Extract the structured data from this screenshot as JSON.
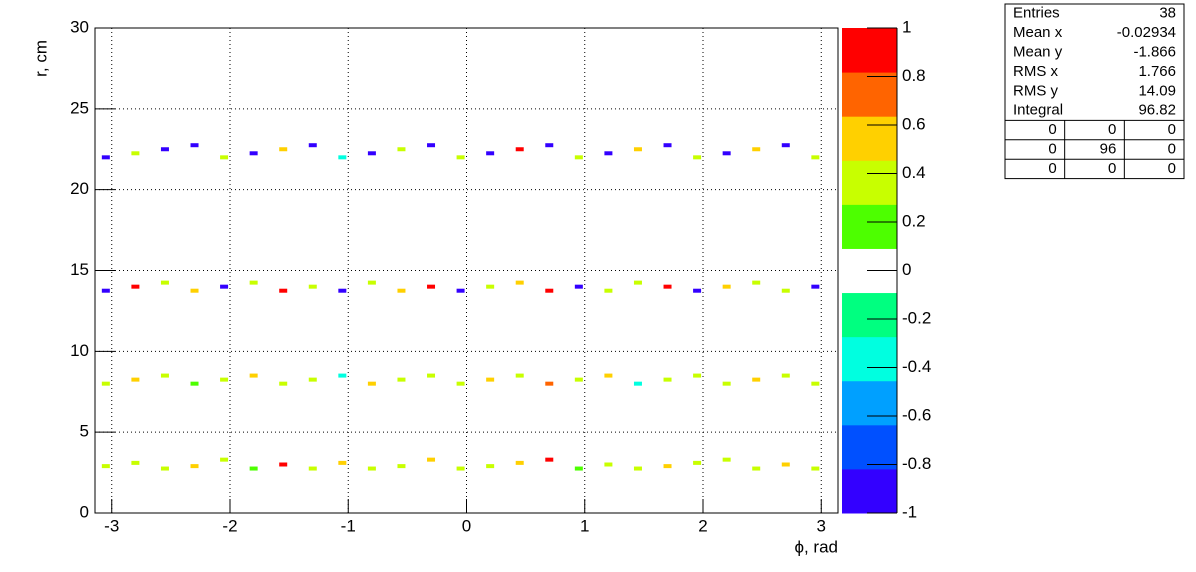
{
  "chart_data": {
    "type": "heatmap",
    "xlabel": "ϕ, rad",
    "ylabel": "r, cm",
    "xlim": [
      -3.1416,
      3.1416
    ],
    "xticks": [
      -3,
      -2,
      -1,
      0,
      1,
      2,
      3
    ],
    "ylim": [
      0,
      30
    ],
    "yticks": [
      0,
      5,
      10,
      15,
      20,
      25,
      30
    ],
    "zlim": [
      -1,
      1
    ],
    "zticks": [
      1,
      0.8,
      0.6,
      0.4,
      0.2,
      0,
      -0.2,
      -0.4,
      -0.6,
      -0.8,
      -1
    ],
    "grid": true,
    "palette": [
      "#3300ff",
      "#0050ff",
      "#00a0ff",
      "#00ffe0",
      "#00ff80",
      "#ffffff",
      "#4dff00",
      "#c8ff00",
      "#ffd000",
      "#ff6400",
      "#ff0000"
    ],
    "x": [
      -3.05,
      -2.8,
      -2.55,
      -2.3,
      -2.05,
      -1.8,
      -1.55,
      -1.3,
      -1.05,
      -0.8,
      -0.55,
      -0.3,
      -0.05,
      0.2,
      0.45,
      0.7,
      0.95,
      1.2,
      1.45,
      1.7,
      1.95,
      2.2,
      2.45,
      2.7,
      2.95,
      -3.05,
      -2.8,
      -2.55,
      -2.3,
      -2.05,
      -1.8,
      -1.55,
      -1.3,
      -1.05,
      -0.8,
      -0.55,
      -0.3,
      -0.05,
      0.2,
      0.45,
      0.7,
      0.95,
      1.2,
      1.45,
      1.7,
      1.95,
      2.2,
      2.45,
      2.7,
      2.95,
      -3.05,
      -2.8,
      -2.55,
      -2.3,
      -2.05,
      -1.8,
      -1.55,
      -1.3,
      -1.05,
      -0.8,
      -0.55,
      -0.3,
      -0.05,
      0.2,
      0.45,
      0.7,
      0.95,
      1.2,
      1.45,
      1.7,
      1.95,
      2.2,
      2.45,
      2.7,
      2.95,
      -3.05,
      -2.8,
      -2.55,
      -2.3,
      -2.05,
      -1.8,
      -1.55,
      -1.3,
      -1.05,
      -0.8,
      -0.55,
      -0.3,
      -0.05,
      0.2,
      0.45,
      0.7,
      0.95,
      1.2,
      1.45,
      1.7,
      1.95,
      2.2,
      2.45,
      2.7,
      2.95
    ],
    "y": [
      2.9,
      3.1,
      2.75,
      2.9,
      3.3,
      2.75,
      3.0,
      2.75,
      3.1,
      2.75,
      2.9,
      3.3,
      2.75,
      2.9,
      3.1,
      3.3,
      2.75,
      3.0,
      2.75,
      2.9,
      3.1,
      3.3,
      2.75,
      3.0,
      2.75,
      8.0,
      8.25,
      8.5,
      8.0,
      8.25,
      8.5,
      8.0,
      8.25,
      8.5,
      8.0,
      8.25,
      8.5,
      8.0,
      8.25,
      8.5,
      8.0,
      8.25,
      8.5,
      8.0,
      8.25,
      8.5,
      8.0,
      8.25,
      8.5,
      8.0,
      13.75,
      14.0,
      14.25,
      13.75,
      14.0,
      14.25,
      13.75,
      14.0,
      13.75,
      14.25,
      13.75,
      14.0,
      13.75,
      14.0,
      14.25,
      13.75,
      14.0,
      13.75,
      14.25,
      14.0,
      13.75,
      14.0,
      14.25,
      13.75,
      14.0,
      22.0,
      22.25,
      22.5,
      22.75,
      22.0,
      22.25,
      22.5,
      22.75,
      22.0,
      22.25,
      22.5,
      22.75,
      22.0,
      22.25,
      22.5,
      22.75,
      22.0,
      22.25,
      22.5,
      22.75,
      22.0,
      22.25,
      22.5,
      22.75,
      22.0
    ],
    "values": [
      0.45,
      0.35,
      0.3,
      0.55,
      0.4,
      0.25,
      0.9,
      0.35,
      0.5,
      0.3,
      0.45,
      0.55,
      0.35,
      0.3,
      0.5,
      0.95,
      0.25,
      0.4,
      0.3,
      0.5,
      0.35,
      0.45,
      0.3,
      0.55,
      0.35,
      0.3,
      0.5,
      0.35,
      0.1,
      0.45,
      0.55,
      0.3,
      0.4,
      -0.3,
      0.5,
      0.35,
      0.3,
      0.45,
      0.55,
      0.3,
      0.75,
      0.4,
      0.5,
      -0.3,
      0.35,
      0.45,
      0.3,
      0.55,
      0.4,
      0.3,
      -0.9,
      0.9,
      0.35,
      0.5,
      -0.9,
      0.3,
      0.9,
      0.45,
      -0.9,
      0.3,
      0.55,
      0.9,
      -0.9,
      0.35,
      0.5,
      0.9,
      -0.9,
      0.3,
      0.45,
      0.9,
      -0.9,
      0.55,
      0.3,
      0.35,
      -0.9,
      -0.9,
      0.45,
      -0.9,
      -0.9,
      0.3,
      -0.9,
      0.5,
      -0.9,
      -0.3,
      -0.9,
      0.4,
      -0.9,
      0.35,
      -0.9,
      0.9,
      -0.9,
      0.45,
      -0.9,
      0.5,
      -0.9,
      0.35,
      -0.9,
      0.55,
      -0.9,
      0.3
    ],
    "stats": [
      {
        "label": "Entries",
        "value": 38
      },
      {
        "label": "Mean x",
        "value": -0.02934
      },
      {
        "label": "Mean y",
        "value": -1.866
      },
      {
        "label": "RMS x",
        "value": 1.766
      },
      {
        "label": "RMS y",
        "value": 14.09
      },
      {
        "label": "Integral",
        "value": 96.82
      }
    ],
    "stats_grid": [
      [
        0,
        0,
        0
      ],
      [
        0,
        96,
        0
      ],
      [
        0,
        0,
        0
      ]
    ]
  }
}
